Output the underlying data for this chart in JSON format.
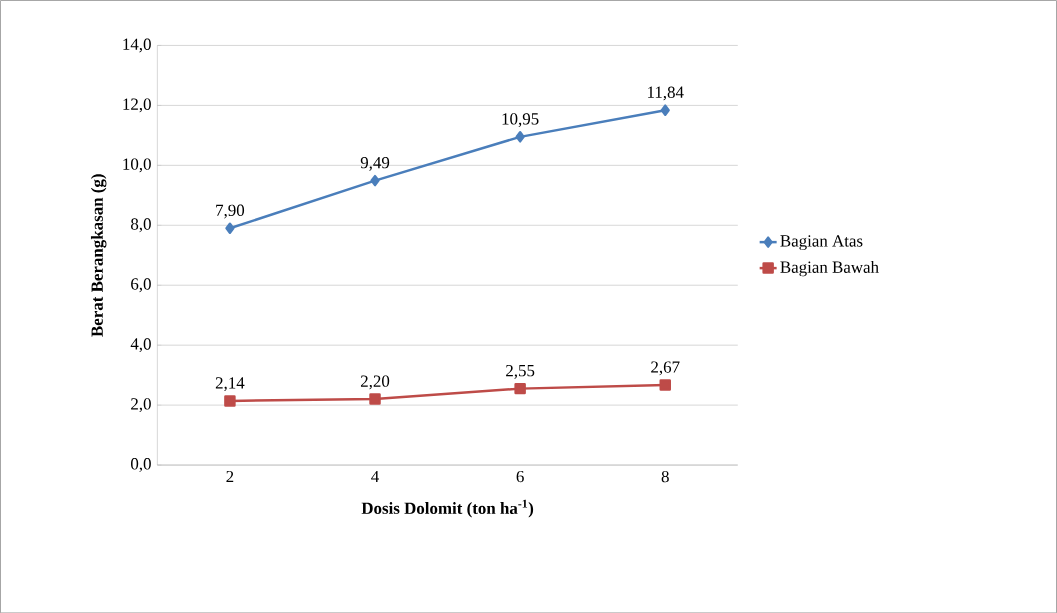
{
  "chart_data": {
    "type": "line",
    "xlabel": "Dosis Dolomit (ton ha$^{-1}$)",
    "ylabel": "Berat Berangkasan (g)",
    "categories": [
      "2",
      "4",
      "6",
      "8"
    ],
    "series": [
      {
        "name": "Bagian Atas",
        "color": "#4a7ebb",
        "marker": "diamond",
        "values": [
          7.9,
          9.49,
          10.95,
          11.84
        ],
        "value_labels": [
          "7,90",
          "9,49",
          "10,95",
          "11,84"
        ]
      },
      {
        "name": "Bagian Bawah",
        "color": "#be4b48",
        "marker": "square",
        "values": [
          2.14,
          2.2,
          2.55,
          2.67
        ],
        "value_labels": [
          "2,14",
          "2,20",
          "2,55",
          "2,67"
        ]
      }
    ],
    "ylim": [
      0,
      14
    ],
    "yticks": [
      {
        "value": 0,
        "label": "0,0"
      },
      {
        "value": 2,
        "label": "2,0"
      },
      {
        "value": 4,
        "label": "4,0"
      },
      {
        "value": 6,
        "label": "6,0"
      },
      {
        "value": 8,
        "label": "8,0"
      },
      {
        "value": 10,
        "label": "10,0"
      },
      {
        "value": 12,
        "label": "12,0"
      },
      {
        "value": 14,
        "label": "14,0"
      }
    ],
    "grid": "y",
    "legend": "right",
    "line_style": "solid"
  }
}
